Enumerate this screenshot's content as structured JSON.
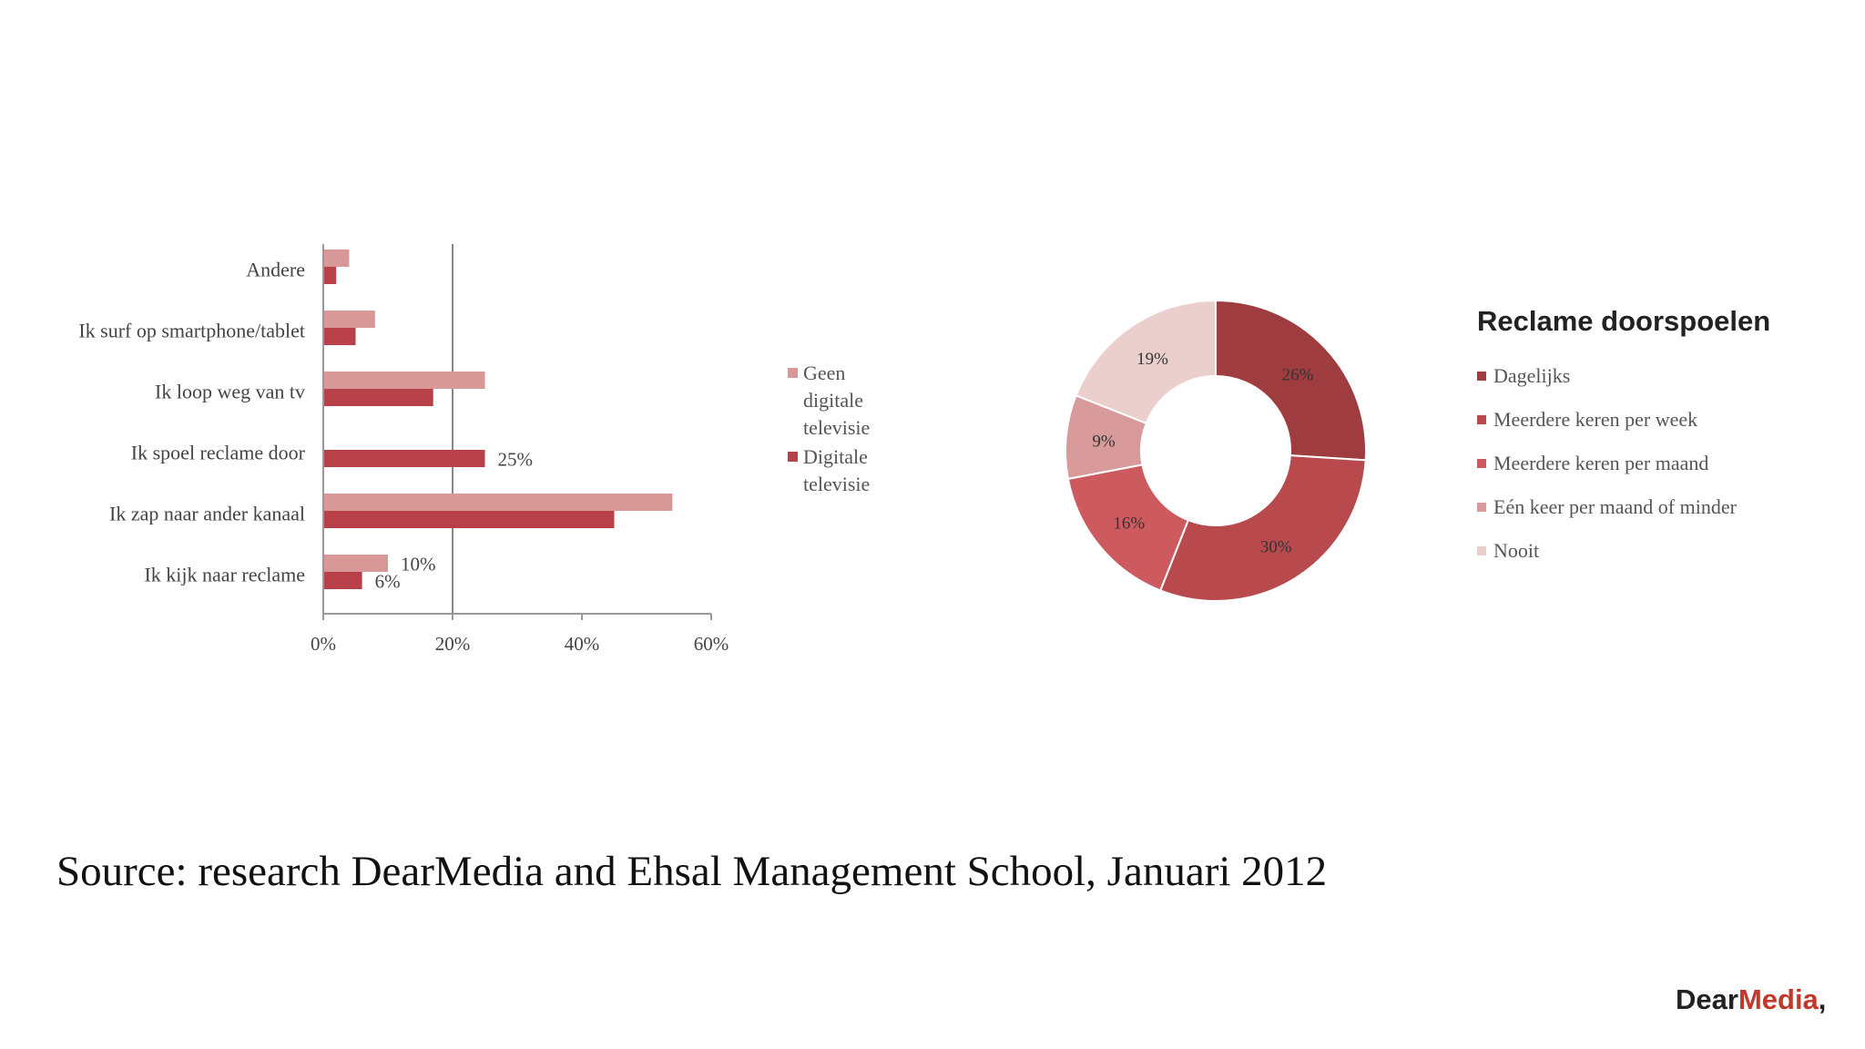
{
  "chart_data": [
    {
      "type": "bar",
      "orientation": "horizontal",
      "categories": [
        "Andere",
        "Ik surf op smartphone/tablet",
        "Ik loop weg van tv",
        "Ik spoel reclame door",
        "Ik zap naar ander kanaal",
        "Ik kijk naar reclame"
      ],
      "series": [
        {
          "name": "Geen digitale televisie",
          "values": [
            4,
            8,
            25,
            null,
            54,
            10
          ],
          "color": "#d99898"
        },
        {
          "name": "Digitale televisie",
          "values": [
            2,
            5,
            17,
            25,
            45,
            6
          ],
          "color": "#b84048"
        }
      ],
      "data_labels": [
        {
          "category": "Ik spoel reclame door",
          "series": "Digitale televisie",
          "text": "25%"
        },
        {
          "category": "Ik kijk naar reclame",
          "series": "Geen digitale televisie",
          "text": "10%"
        },
        {
          "category": "Ik kijk naar reclame",
          "series": "Digitale televisie",
          "text": "6%"
        }
      ],
      "xlim": [
        0,
        60
      ],
      "xticks": [
        "0%",
        "20%",
        "40%",
        "60%"
      ],
      "reference_line": 20,
      "legend": [
        "Geen digitale televisie",
        "Digitale televisie"
      ],
      "legend_position": "right"
    },
    {
      "type": "pie",
      "donut": true,
      "title": "Reclame doorspoelen",
      "slices": [
        {
          "label": "Dagelijks",
          "value": 26,
          "text": "26%",
          "color": "#9e3c40"
        },
        {
          "label": "Meerdere keren per week",
          "value": 30,
          "text": "30%",
          "color": "#b84a4e"
        },
        {
          "label": "Meerdere keren per maand",
          "value": 16,
          "text": "16%",
          "color": "#cc5a5e"
        },
        {
          "label": "Eén keer per maand of minder",
          "value": 9,
          "text": "9%",
          "color": "#d99a9c"
        },
        {
          "label": "Nooit",
          "value": 19,
          "text": "19%",
          "color": "#ebcfcd"
        }
      ],
      "legend_position": "right"
    }
  ],
  "source_text": "Source: research DearMedia and Ehsal Management School, Januari 2012",
  "logo": {
    "part1": "Dear",
    "part2": "Media",
    "part3": ","
  }
}
